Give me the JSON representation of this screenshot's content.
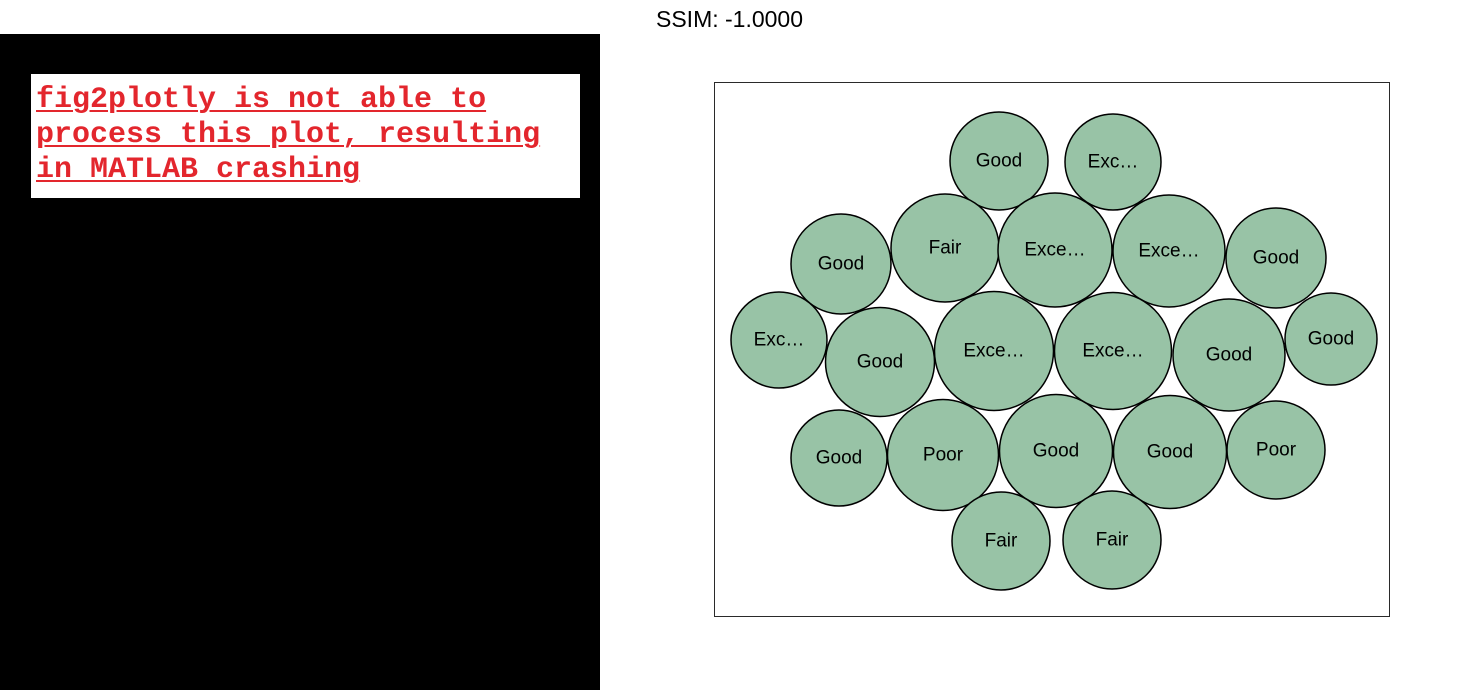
{
  "left_panel": {
    "message": "fig2plotly is not able to process this plot, resulting in MATLAB crashing",
    "message_color": "#e3262d",
    "background": "#000000"
  },
  "ssim": {
    "label": "SSIM: -1.0000"
  },
  "chart_data": {
    "type": "bubblecloud",
    "bubble_color": "#98c3a6",
    "bubbles": [
      {
        "label": "Good",
        "size": 9.8
      },
      {
        "label": "Exc…",
        "size": 9.6
      },
      {
        "label": "Good",
        "size": 10.0
      },
      {
        "label": "Fair",
        "size": 10.8
      },
      {
        "label": "Exce…",
        "size": 11.4
      },
      {
        "label": "Exce…",
        "size": 11.2
      },
      {
        "label": "Good",
        "size": 10.0
      },
      {
        "label": "Exc…",
        "size": 9.6
      },
      {
        "label": "Good",
        "size": 10.9
      },
      {
        "label": "Exce…",
        "size": 11.9
      },
      {
        "label": "Exce…",
        "size": 11.7
      },
      {
        "label": "Good",
        "size": 11.2
      },
      {
        "label": "Good",
        "size": 9.2
      },
      {
        "label": "Good",
        "size": 9.6
      },
      {
        "label": "Poor",
        "size": 11.1
      },
      {
        "label": "Good",
        "size": 11.3
      },
      {
        "label": "Good",
        "size": 11.3
      },
      {
        "label": "Poor",
        "size": 9.8
      },
      {
        "label": "Fair",
        "size": 9.8
      },
      {
        "label": "Fair",
        "size": 9.8
      }
    ]
  }
}
